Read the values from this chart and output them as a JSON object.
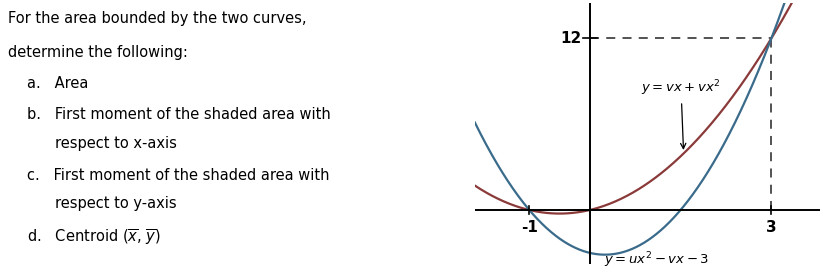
{
  "fig_width": 8.28,
  "fig_height": 2.67,
  "dpi": 100,
  "curve1_color": "#8b3a3a",
  "curve2_color": "#3a6b8b",
  "background_color": "#ffffff",
  "xlim": [
    -1.9,
    3.8
  ],
  "ylim": [
    -3.8,
    14.5
  ],
  "dashed_y": 12,
  "dashed_x": 3,
  "tick_fontsize": 11,
  "label_fontsize": 9.5,
  "text_fontsize": 10.5
}
